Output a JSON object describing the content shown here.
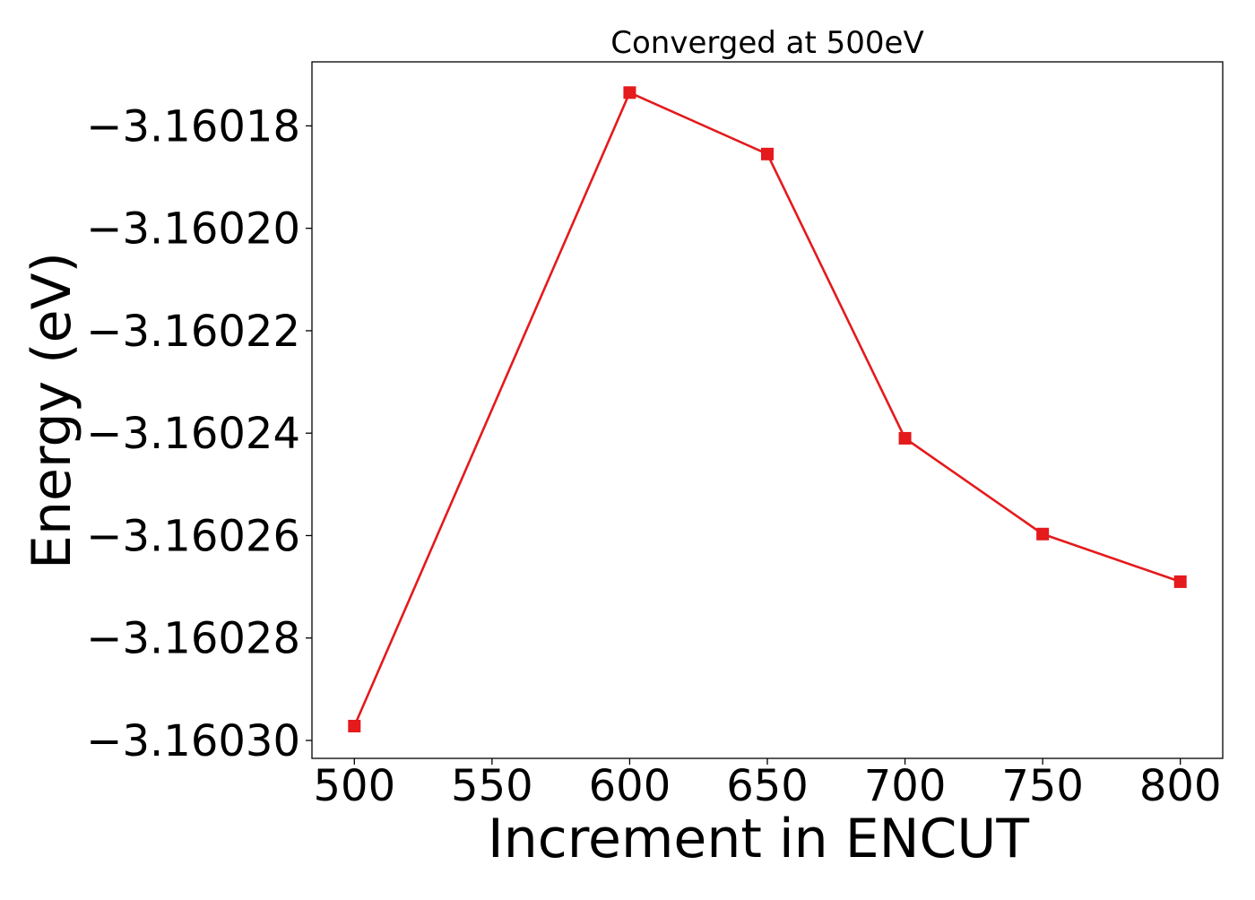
{
  "chart_data": {
    "type": "line",
    "title": "Converged at 500eV",
    "xlabel": "Increment in ENCUT",
    "ylabel": "Energy (eV)",
    "x": [
      500,
      600,
      650,
      700,
      750,
      800
    ],
    "series": [
      {
        "values": [
          -3.1602972,
          -3.1601735,
          -3.1601855,
          -3.160241,
          -3.1602597,
          -3.160269
        ],
        "color": "#e41a1c",
        "marker": "square"
      }
    ],
    "xlim": [
      484.6,
      815.4
    ],
    "ylim": [
      -3.1603035,
      -3.1601675
    ],
    "xticks": [
      500,
      550,
      600,
      650,
      700,
      750,
      800
    ],
    "xtick_labels": [
      "500",
      "550",
      "600",
      "650",
      "700",
      "750",
      "800"
    ],
    "yticks": [
      -3.1603,
      -3.16028,
      -3.16026,
      -3.16024,
      -3.16022,
      -3.1602,
      -3.16018
    ],
    "ytick_labels": [
      "−3.16030",
      "−3.16028",
      "−3.16026",
      "−3.16024",
      "−3.16022",
      "−3.16020",
      "−3.16018"
    ],
    "grid": false,
    "legend": "none"
  }
}
